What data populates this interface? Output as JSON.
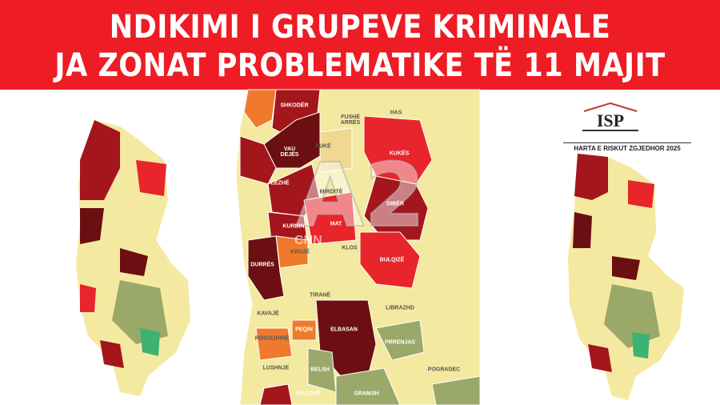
{
  "headline": {
    "line1": "NDIKIMI I GRUPEVE KRIMINALE",
    "line2": "JA ZONAT PROBLEMATIKE TË 11 MAJIT"
  },
  "logo": {
    "text": "ISP",
    "caption": "HARTA E RISKUT ZGJEDHOR 2025"
  },
  "watermark": {
    "channel": "A2",
    "affiliate": "CNN"
  },
  "colors": {
    "banner": "#ee1c24",
    "very_high": "#6b0f12",
    "high": "#a3161c",
    "elevated": "#e8252b",
    "moderate": "#f07a2b",
    "low": "#f4e9a0",
    "very_low": "#9aa86a"
  },
  "regions": [
    {
      "name": "SHKODËR",
      "risk": "high"
    },
    {
      "name": "FUSHË\nARRËS",
      "risk": "low"
    },
    {
      "name": "HAS",
      "risk": "low"
    },
    {
      "name": "VAU\nDEJËS",
      "risk": "very_high"
    },
    {
      "name": "PUKË",
      "risk": "low"
    },
    {
      "name": "KUKËS",
      "risk": "elevated"
    },
    {
      "name": "LEZHË",
      "risk": "high"
    },
    {
      "name": "MIRDITË",
      "risk": "low"
    },
    {
      "name": "DIBËR",
      "risk": "high"
    },
    {
      "name": "KURBIN",
      "risk": "high"
    },
    {
      "name": "MAT",
      "risk": "elevated"
    },
    {
      "name": "KRUJË",
      "risk": "moderate"
    },
    {
      "name": "KLOS",
      "risk": "low"
    },
    {
      "name": "BULQIZË",
      "risk": "elevated"
    },
    {
      "name": "DURRËS",
      "risk": "very_high"
    },
    {
      "name": "TIRANË",
      "risk": "low"
    },
    {
      "name": "LIBRAZHD",
      "risk": "low"
    },
    {
      "name": "KAVAJË",
      "risk": "low"
    },
    {
      "name": "ELBASAN",
      "risk": "very_high"
    },
    {
      "name": "PRRENJAS",
      "risk": "very_low"
    },
    {
      "name": "ROGOZHINË",
      "risk": "moderate"
    },
    {
      "name": "PEQIN",
      "risk": "moderate"
    },
    {
      "name": "LUSHNJE",
      "risk": "low"
    },
    {
      "name": "BELSH",
      "risk": "very_low"
    },
    {
      "name": "GRAMSH",
      "risk": "very_low"
    },
    {
      "name": "POGRADEC",
      "risk": "low"
    },
    {
      "name": "KUÇOVË",
      "risk": "very_low"
    }
  ]
}
